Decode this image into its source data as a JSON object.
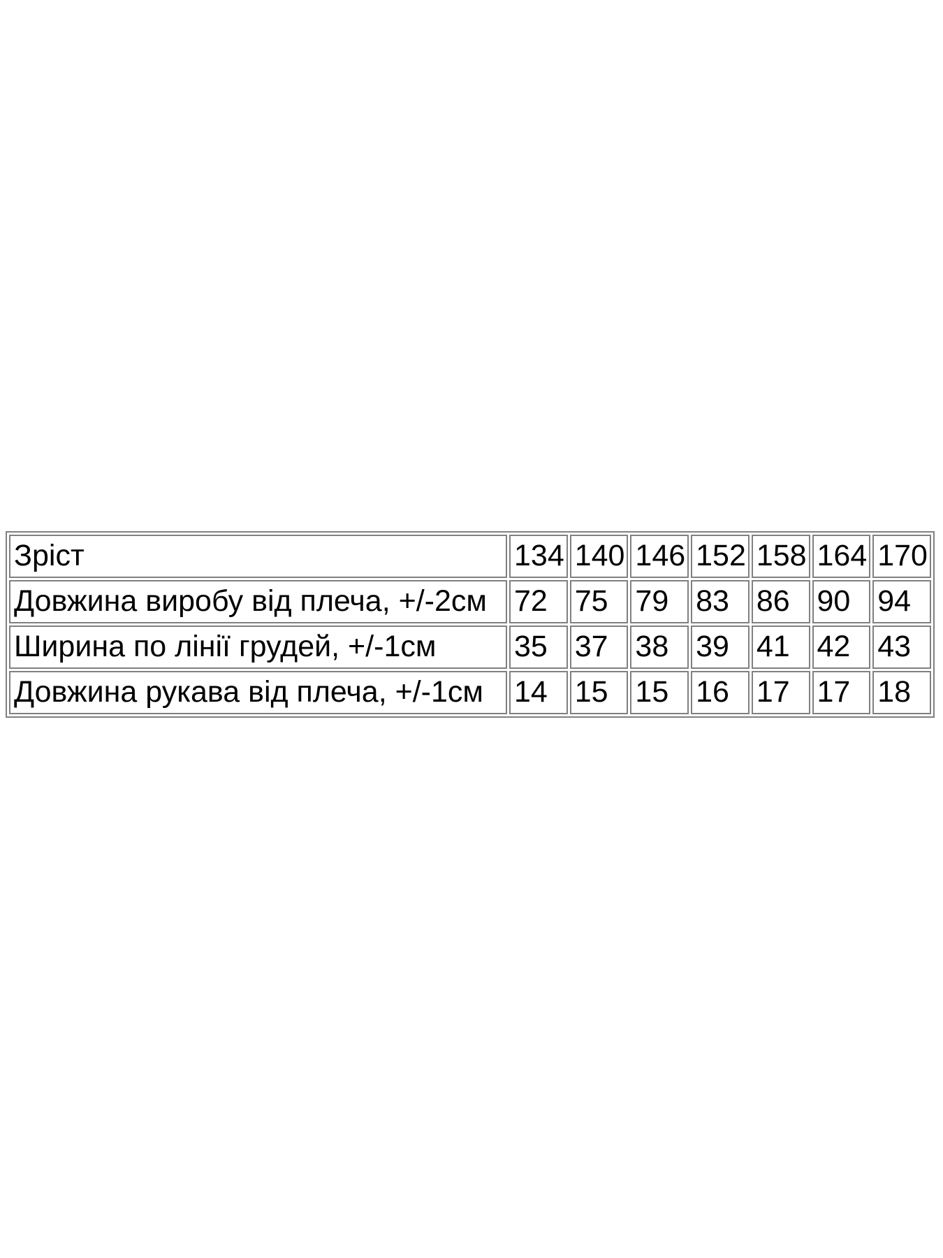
{
  "colors": {
    "background": "#ffffff",
    "table_border": "#808080",
    "text": "#000000"
  },
  "chart_data": {
    "type": "table",
    "title": "",
    "header": {
      "label": "Зріст",
      "values": [
        "134",
        "140",
        "146",
        "152",
        "158",
        "164",
        "170"
      ]
    },
    "rows": [
      {
        "label": "Довжина виробу від плеча, +/-2см",
        "values": [
          "72",
          "75",
          "79",
          "83",
          "86",
          "90",
          "94"
        ]
      },
      {
        "label": "Ширина по лінії грудей, +/-1см",
        "values": [
          "35",
          "37",
          "38",
          "39",
          "41",
          "42",
          "43"
        ]
      },
      {
        "label": "Довжина рукава від плеча, +/-1см",
        "values": [
          "14",
          "15",
          "15",
          "16",
          "17",
          "17",
          "18"
        ]
      }
    ]
  }
}
